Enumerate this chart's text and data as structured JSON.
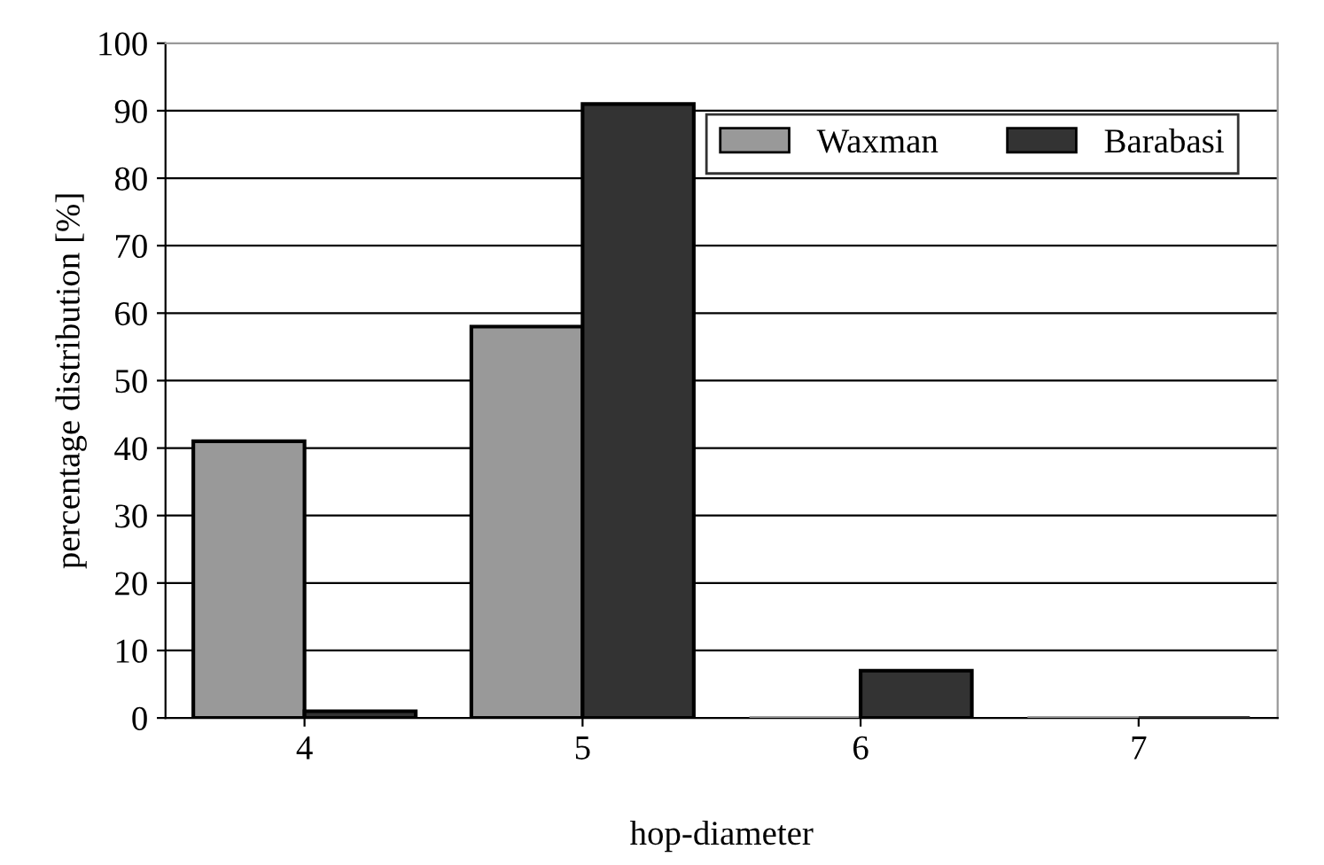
{
  "chart_data": {
    "type": "bar",
    "xlabel": "hop-diameter",
    "ylabel": "percentage distribution [%]",
    "categories": [
      "4",
      "5",
      "6",
      "7"
    ],
    "series": [
      {
        "name": "Waxman",
        "color": "#999999",
        "values": [
          41,
          58,
          0,
          0
        ]
      },
      {
        "name": "Barabasi",
        "color": "#333333",
        "values": [
          1,
          91,
          7,
          0
        ]
      }
    ],
    "ylim": [
      0,
      100
    ],
    "yticks": [
      0,
      10,
      20,
      30,
      40,
      50,
      60,
      70,
      80,
      90,
      100
    ],
    "grid": "y",
    "legend": "top right"
  }
}
